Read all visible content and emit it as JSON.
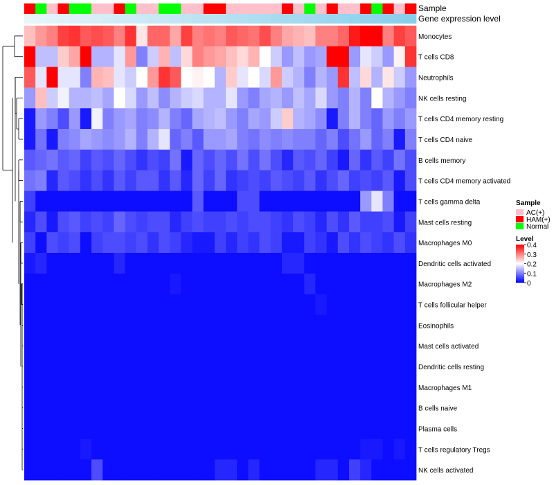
{
  "chart_data": {
    "type": "heatmap",
    "title": "",
    "annotation_track_labels": [
      "Sample",
      "Gene expression level"
    ],
    "rows": [
      "Monocytes",
      "T cells CD8",
      "Neutrophils",
      "NK cells resting",
      "T cells CD4 memory resting",
      "T cells CD4 naive",
      "B cells memory",
      "T cells CD4 memory activated",
      "T cells gamma delta",
      "Mast cells resting",
      "Macrophages M0",
      "Dendritic cells activated",
      "Macrophages M2",
      "T cells follicular helper",
      "Eosinophils",
      "Mast cells activated",
      "Dendritic cells resting",
      "Macrophages M1",
      "B cells naive",
      "Plasma cells",
      "T cells regulatory  Tregs",
      "NK cells activated"
    ],
    "sample_groups": [
      "HAM(+)",
      "Normal",
      "AC(+)",
      "HAM(+)",
      "Normal",
      "Normal",
      "AC(+)",
      "AC(+)",
      "HAM(+)",
      "Normal",
      "AC(+)",
      "AC(+)",
      "Normal",
      "Normal",
      "AC(+)",
      "AC(+)",
      "HAM(+)",
      "HAM(+)",
      "AC(+)",
      "AC(+)",
      "AC(+)",
      "AC(+)",
      "AC(+)",
      "HAM(+)",
      "AC(+)",
      "Normal",
      "AC(+)",
      "HAM(+)",
      "AC(+)",
      "AC(+)",
      "HAM(+)",
      "Normal",
      "HAM(+)",
      "AC(+)",
      "HAM(+)"
    ],
    "matrix": [
      [
        0.25,
        0.28,
        0.3,
        0.35,
        0.36,
        0.33,
        0.34,
        0.33,
        0.3,
        0.36,
        0.22,
        0.32,
        0.32,
        0.27,
        0.35,
        0.3,
        0.31,
        0.3,
        0.33,
        0.32,
        0.31,
        0.34,
        0.3,
        0.27,
        0.26,
        0.25,
        0.3,
        0.3,
        0.32,
        0.38,
        0.4,
        0.4,
        0.3,
        0.35,
        0.33
      ],
      [
        0.4,
        0.15,
        0.15,
        0.24,
        0.27,
        0.4,
        0.14,
        0.14,
        0.18,
        0.28,
        0.1,
        0.16,
        0.26,
        0.15,
        0.23,
        0.3,
        0.28,
        0.27,
        0.25,
        0.23,
        0.26,
        0.2,
        0.16,
        0.12,
        0.15,
        0.12,
        0.13,
        0.4,
        0.4,
        0.12,
        0.18,
        0.16,
        0.12,
        0.21,
        0.36
      ],
      [
        0.33,
        0.18,
        0.4,
        0.18,
        0.18,
        0.1,
        0.26,
        0.25,
        0.18,
        0.16,
        0.2,
        0.28,
        0.36,
        0.33,
        0.2,
        0.21,
        0.2,
        0.14,
        0.24,
        0.18,
        0.2,
        0.17,
        0.28,
        0.16,
        0.14,
        0.1,
        0.14,
        0.12,
        0.36,
        0.15,
        0.23,
        0.14,
        0.22,
        0.16,
        0.12
      ],
      [
        0.12,
        0.25,
        0.16,
        0.19,
        0.14,
        0.14,
        0.15,
        0.13,
        0.2,
        0.17,
        0.12,
        0.15,
        0.11,
        0.14,
        0.16,
        0.17,
        0.14,
        0.14,
        0.18,
        0.12,
        0.1,
        0.13,
        0.14,
        0.12,
        0.15,
        0.13,
        0.17,
        0.12,
        0.1,
        0.14,
        0.1,
        0.2,
        0.14,
        0.12,
        0.1
      ],
      [
        0.02,
        0.12,
        0.1,
        0.06,
        0.12,
        0.02,
        0.19,
        0.1,
        0.12,
        0.13,
        0.1,
        0.11,
        0.14,
        0.1,
        0.08,
        0.13,
        0.14,
        0.15,
        0.12,
        0.1,
        0.13,
        0.12,
        0.16,
        0.24,
        0.14,
        0.13,
        0.11,
        0.02,
        0.1,
        0.14,
        0.1,
        0.08,
        0.12,
        0.1,
        0.12
      ],
      [
        0.02,
        0.09,
        0.02,
        0.1,
        0.11,
        0.13,
        0.12,
        0.11,
        0.12,
        0.14,
        0.1,
        0.14,
        0.18,
        0.08,
        0.1,
        0.07,
        0.12,
        0.12,
        0.13,
        0.1,
        0.09,
        0.11,
        0.1,
        0.11,
        0.1,
        0.1,
        0.08,
        0.1,
        0.06,
        0.09,
        0.12,
        0.08,
        0.1,
        0.02,
        0.1
      ],
      [
        0.07,
        0.08,
        0.09,
        0.07,
        0.08,
        0.05,
        0.07,
        0.06,
        0.08,
        0.06,
        0.04,
        0.06,
        0.05,
        0.09,
        0.02,
        0.08,
        0.06,
        0.08,
        0.06,
        0.09,
        0.06,
        0.09,
        0.06,
        0.03,
        0.07,
        0.06,
        0.08,
        0.05,
        0.02,
        0.08,
        0.04,
        0.07,
        0.05,
        0.09,
        0.06
      ],
      [
        0.09,
        0.1,
        0.03,
        0.07,
        0.06,
        0.04,
        0.06,
        0.04,
        0.07,
        0.05,
        0.07,
        0.07,
        0.04,
        0.07,
        0.03,
        0.08,
        0.05,
        0.08,
        0.04,
        0.05,
        0.06,
        0.05,
        0.07,
        0.06,
        0.05,
        0.07,
        0.04,
        0.06,
        0.08,
        0.05,
        0.06,
        0.05,
        0.07,
        0.02,
        0.06
      ],
      [
        0.05,
        0.01,
        0.01,
        0.01,
        0.01,
        0.01,
        0.01,
        0.01,
        0.01,
        0.01,
        0.01,
        0.01,
        0.01,
        0.01,
        0.01,
        0.07,
        0.01,
        0.01,
        0.01,
        0.06,
        0.06,
        0.01,
        0.01,
        0.01,
        0.01,
        0.01,
        0.01,
        0.01,
        0.01,
        0.01,
        0.12,
        0.18,
        0.1,
        0.01,
        0.01
      ],
      [
        0.03,
        0.06,
        0.02,
        0.06,
        0.07,
        0.05,
        0.06,
        0.05,
        0.08,
        0.06,
        0.05,
        0.06,
        0.06,
        0.03,
        0.05,
        0.06,
        0.05,
        0.05,
        0.06,
        0.05,
        0.06,
        0.06,
        0.05,
        0.04,
        0.06,
        0.05,
        0.03,
        0.06,
        0.04,
        0.07,
        0.05,
        0.05,
        0.06,
        0.02,
        0.05
      ],
      [
        0.05,
        0.01,
        0.06,
        0.05,
        0.06,
        0.01,
        0.05,
        0.06,
        0.06,
        0.05,
        0.06,
        0.04,
        0.06,
        0.05,
        0.03,
        0.02,
        0.02,
        0.05,
        0.03,
        0.05,
        0.04,
        0.06,
        0.05,
        0.02,
        0.02,
        0.05,
        0.04,
        0.02,
        0.06,
        0.04,
        0.06,
        0.05,
        0.04,
        0.06,
        0.04
      ],
      [
        0.02,
        0.03,
        0.01,
        0.01,
        0.01,
        0.01,
        0.01,
        0.01,
        0.03,
        0.01,
        0.01,
        0.01,
        0.01,
        0.01,
        0.01,
        0.01,
        0.01,
        0.01,
        0.01,
        0.01,
        0.01,
        0.01,
        0.01,
        0.03,
        0.03,
        0.01,
        0.01,
        0.01,
        0.01,
        0.01,
        0.01,
        0.01,
        0.01,
        0.01,
        0.01
      ],
      [
        0.01,
        0.01,
        0.01,
        0.01,
        0.01,
        0.01,
        0.01,
        0.01,
        0.01,
        0.01,
        0.01,
        0.01,
        0.01,
        0.02,
        0.01,
        0.01,
        0.01,
        0.01,
        0.01,
        0.01,
        0.01,
        0.01,
        0.01,
        0.01,
        0.01,
        0.03,
        0.01,
        0.01,
        0.01,
        0.01,
        0.01,
        0.01,
        0.01,
        0.01,
        0.01
      ],
      [
        0.01,
        0.01,
        0.01,
        0.01,
        0.01,
        0.01,
        0.01,
        0.01,
        0.01,
        0.01,
        0.01,
        0.01,
        0.01,
        0.01,
        0.01,
        0.01,
        0.01,
        0.01,
        0.01,
        0.01,
        0.01,
        0.01,
        0.01,
        0.01,
        0.01,
        0.01,
        0.02,
        0.01,
        0.01,
        0.01,
        0.01,
        0.01,
        0.01,
        0.01,
        0.01
      ],
      [
        0.01,
        0.01,
        0.01,
        0.01,
        0.01,
        0.01,
        0.01,
        0.01,
        0.01,
        0.01,
        0.01,
        0.01,
        0.01,
        0.01,
        0.01,
        0.01,
        0.01,
        0.01,
        0.01,
        0.01,
        0.01,
        0.01,
        0.01,
        0.01,
        0.01,
        0.01,
        0.01,
        0.01,
        0.01,
        0.01,
        0.01,
        0.01,
        0.01,
        0.01,
        0.01
      ],
      [
        0.01,
        0.01,
        0.01,
        0.01,
        0.01,
        0.01,
        0.01,
        0.01,
        0.01,
        0.01,
        0.01,
        0.01,
        0.01,
        0.01,
        0.01,
        0.01,
        0.01,
        0.01,
        0.01,
        0.01,
        0.01,
        0.01,
        0.01,
        0.01,
        0.01,
        0.01,
        0.01,
        0.01,
        0.01,
        0.01,
        0.01,
        0.01,
        0.01,
        0.01,
        0.01
      ],
      [
        0.01,
        0.01,
        0.01,
        0.01,
        0.01,
        0.01,
        0.01,
        0.01,
        0.01,
        0.01,
        0.01,
        0.01,
        0.01,
        0.01,
        0.01,
        0.01,
        0.01,
        0.01,
        0.01,
        0.01,
        0.01,
        0.01,
        0.01,
        0.01,
        0.01,
        0.01,
        0.01,
        0.01,
        0.01,
        0.01,
        0.01,
        0.01,
        0.01,
        0.01,
        0.01
      ],
      [
        0.01,
        0.01,
        0.01,
        0.01,
        0.01,
        0.01,
        0.01,
        0.01,
        0.01,
        0.01,
        0.01,
        0.01,
        0.01,
        0.01,
        0.01,
        0.01,
        0.01,
        0.01,
        0.01,
        0.01,
        0.01,
        0.01,
        0.01,
        0.01,
        0.01,
        0.01,
        0.01,
        0.01,
        0.01,
        0.01,
        0.01,
        0.01,
        0.01,
        0.01,
        0.01
      ],
      [
        0.01,
        0.01,
        0.01,
        0.01,
        0.01,
        0.01,
        0.01,
        0.01,
        0.01,
        0.01,
        0.01,
        0.01,
        0.01,
        0.01,
        0.01,
        0.01,
        0.01,
        0.01,
        0.01,
        0.01,
        0.01,
        0.01,
        0.01,
        0.01,
        0.01,
        0.01,
        0.01,
        0.01,
        0.01,
        0.01,
        0.01,
        0.01,
        0.01,
        0.01,
        0.01
      ],
      [
        0.01,
        0.01,
        0.01,
        0.01,
        0.01,
        0.01,
        0.01,
        0.01,
        0.01,
        0.01,
        0.01,
        0.01,
        0.01,
        0.01,
        0.01,
        0.01,
        0.01,
        0.01,
        0.01,
        0.01,
        0.01,
        0.01,
        0.01,
        0.01,
        0.01,
        0.01,
        0.01,
        0.01,
        0.01,
        0.01,
        0.01,
        0.01,
        0.01,
        0.01,
        0.01
      ],
      [
        0.01,
        0.01,
        0.01,
        0.01,
        0.01,
        0.02,
        0.01,
        0.01,
        0.01,
        0.01,
        0.01,
        0.01,
        0.01,
        0.01,
        0.01,
        0.01,
        0.01,
        0.01,
        0.01,
        0.01,
        0.01,
        0.01,
        0.01,
        0.01,
        0.01,
        0.01,
        0.01,
        0.01,
        0.01,
        0.01,
        0.02,
        0.02,
        0.01,
        0.02,
        0.01
      ],
      [
        0.01,
        0.01,
        0.01,
        0.01,
        0.01,
        0.01,
        0.06,
        0.01,
        0.01,
        0.01,
        0.01,
        0.01,
        0.01,
        0.01,
        0.01,
        0.01,
        0.01,
        0.03,
        0.03,
        0.01,
        0.03,
        0.01,
        0.01,
        0.01,
        0.01,
        0.01,
        0.03,
        0.03,
        0.01,
        0.05,
        0.03,
        0.01,
        0.01,
        0.01,
        0.01
      ]
    ],
    "color_scale": {
      "min": 0,
      "max": 0.4,
      "stops": [
        {
          "value": 0,
          "color": "#0000ff"
        },
        {
          "value": 0.2,
          "color": "#ffffff"
        },
        {
          "value": 0.4,
          "color": "#ff0000"
        }
      ]
    },
    "legend": {
      "sample_title": "Sample",
      "sample_entries": [
        {
          "label": "AC(+)",
          "color": "#ffc0cb"
        },
        {
          "label": "HAM(+)",
          "color": "#ff0000"
        },
        {
          "label": "Normal",
          "color": "#00ff00"
        }
      ],
      "level_title": "Level",
      "level_ticks": [
        "0.4",
        "0.3",
        "0.2",
        "0.1",
        "0"
      ],
      "level_tick_values": [
        0.4,
        0.3,
        0.2,
        0.1,
        0
      ]
    },
    "gene_expression_track_color": "#87ceeb",
    "row_dendrogram": true,
    "placement": "legend right"
  }
}
